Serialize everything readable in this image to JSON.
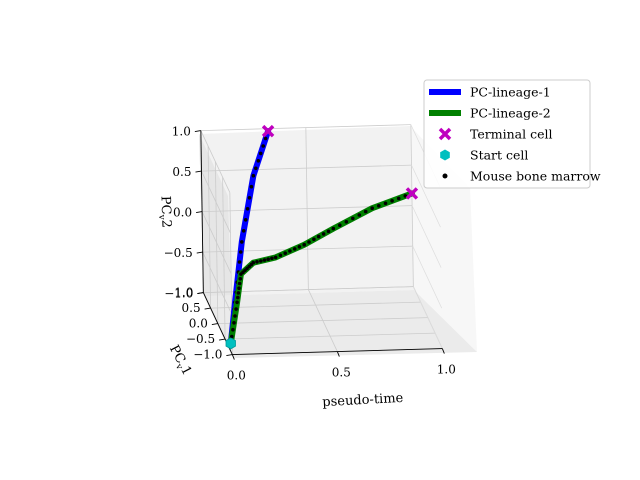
{
  "chart_data": {
    "type": "line",
    "projection": "3d",
    "xlabel": "pseudo-time",
    "ylabel": "PC$_v$1",
    "zlabel": "PC$_v$2",
    "xlim": [
      0.0,
      1.0
    ],
    "ylim": [
      -1.0,
      1.0
    ],
    "zlim": [
      -1.0,
      1.0
    ],
    "x_ticks": [
      "0.0",
      "0.5",
      "1.0"
    ],
    "y_ticks": [
      "1.0",
      "0.5",
      "0.0",
      "−0.5",
      "−1.0"
    ],
    "z_ticks": [
      "1.0",
      "0.5",
      "0.0",
      "−0.5",
      "−1.0"
    ],
    "grid": true,
    "legend_position": "upper-right",
    "legend": [
      {
        "label": "PC-lineage-1",
        "kind": "line",
        "color": "#0000ff"
      },
      {
        "label": "PC-lineage-2",
        "kind": "line",
        "color": "#008000"
      },
      {
        "label": "Terminal cell",
        "kind": "marker",
        "marker": "X",
        "color": "#bf00bf"
      },
      {
        "label": "Start cell",
        "kind": "marker",
        "marker": "hexagon",
        "color": "#00bfbf"
      },
      {
        "label": "Mouse bone marrow",
        "kind": "marker",
        "marker": "dot",
        "color": "#000000"
      }
    ],
    "series": [
      {
        "name": "PC-lineage-1",
        "color": "#0000ff",
        "points": [
          [
            0.0,
            -0.9,
            -0.9
          ],
          [
            0.05,
            -0.5,
            -0.55
          ],
          [
            0.12,
            0.0,
            0.0
          ],
          [
            0.22,
            0.6,
            0.58
          ],
          [
            0.32,
            1.0,
            0.97
          ]
        ]
      },
      {
        "name": "PC-lineage-2",
        "color": "#008000",
        "points": [
          [
            0.0,
            -0.9,
            -0.9
          ],
          [
            0.06,
            -0.5,
            -0.55
          ],
          [
            0.1,
            -0.2,
            -0.32
          ],
          [
            0.18,
            0.1,
            -0.3
          ],
          [
            0.3,
            0.3,
            -0.32
          ],
          [
            0.45,
            0.5,
            -0.25
          ],
          [
            0.6,
            0.65,
            -0.12
          ],
          [
            0.8,
            0.85,
            0.04
          ],
          [
            1.0,
            1.0,
            0.15
          ]
        ]
      }
    ],
    "terminal_cells": [
      [
        0.32,
        1.0,
        0.97
      ],
      [
        1.0,
        1.0,
        0.15
      ]
    ],
    "start_cell": [
      0.0,
      -0.9,
      -0.9
    ]
  }
}
